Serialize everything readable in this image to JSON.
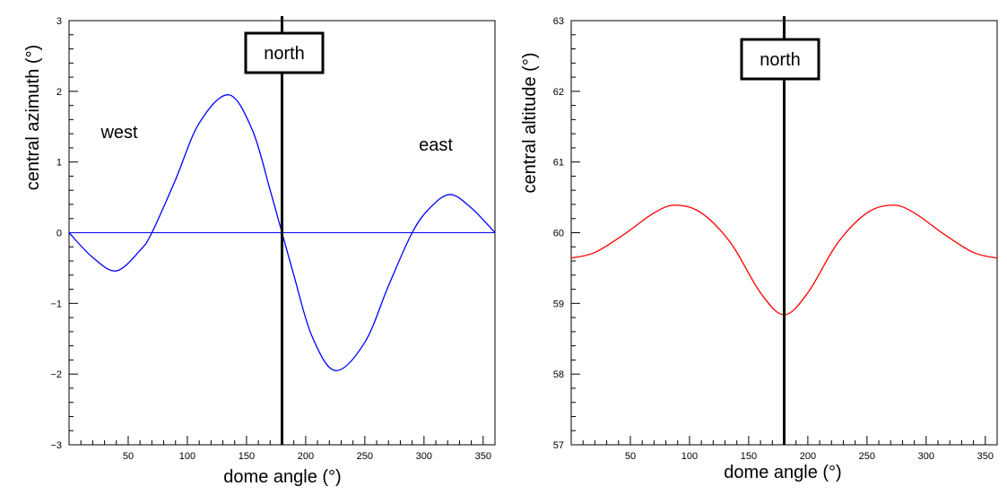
{
  "chart_data": [
    {
      "type": "line",
      "xlabel": "dome angle (°)",
      "ylabel": "central azimuth (°)",
      "xlim": [
        0,
        360
      ],
      "ylim": [
        -3,
        3
      ],
      "xticks": [
        50,
        100,
        150,
        200,
        250,
        300,
        350
      ],
      "yticks": [
        -3,
        -2,
        -1,
        0,
        1,
        2,
        3
      ],
      "yticklabels": [
        "−3",
        "−2",
        "−1",
        "0",
        "1",
        "2",
        "3"
      ],
      "grid": false,
      "reference_line": {
        "orientation": "horizontal",
        "y": 0,
        "color": "#0000ff"
      },
      "marker_line": {
        "orientation": "vertical",
        "x": 180,
        "label": "north"
      },
      "annotations": [
        {
          "text": "west",
          "x": 45,
          "y": 1.45
        },
        {
          "text": "east",
          "x": 310,
          "y": 1.25
        }
      ],
      "series": [
        {
          "color": "#0000ff",
          "x": [
            0,
            20,
            40,
            60,
            70,
            90,
            110,
            135,
            155,
            170,
            180,
            190,
            205,
            225,
            250,
            270,
            290,
            305,
            322,
            340,
            360
          ],
          "y": [
            0,
            -0.35,
            -0.54,
            -0.25,
            0,
            0.75,
            1.55,
            1.95,
            1.45,
            0.6,
            0,
            -0.6,
            -1.45,
            -1.95,
            -1.55,
            -0.75,
            0,
            0.35,
            0.54,
            0.35,
            0
          ]
        }
      ]
    },
    {
      "type": "line",
      "xlabel": "dome angle (°)",
      "ylabel": "central altitude (°)",
      "xlim": [
        0,
        360
      ],
      "ylim": [
        57,
        63
      ],
      "xticks": [
        50,
        100,
        150,
        200,
        250,
        300,
        350
      ],
      "yticks": [
        57,
        58,
        59,
        60,
        61,
        62,
        63
      ],
      "yticklabels": [
        "57",
        "58",
        "59",
        "60",
        "61",
        "62",
        "63"
      ],
      "grid": false,
      "marker_line": {
        "orientation": "vertical",
        "x": 180,
        "label": "north"
      },
      "series": [
        {
          "color": "#ff0000",
          "x": [
            0,
            20,
            45,
            70,
            88,
            110,
            135,
            160,
            180,
            200,
            225,
            250,
            272,
            290,
            315,
            340,
            360
          ],
          "y": [
            59.64,
            59.72,
            59.98,
            60.28,
            60.39,
            60.28,
            59.85,
            59.15,
            58.84,
            59.15,
            59.85,
            60.28,
            60.39,
            60.28,
            59.98,
            59.72,
            59.64
          ]
        }
      ]
    }
  ]
}
